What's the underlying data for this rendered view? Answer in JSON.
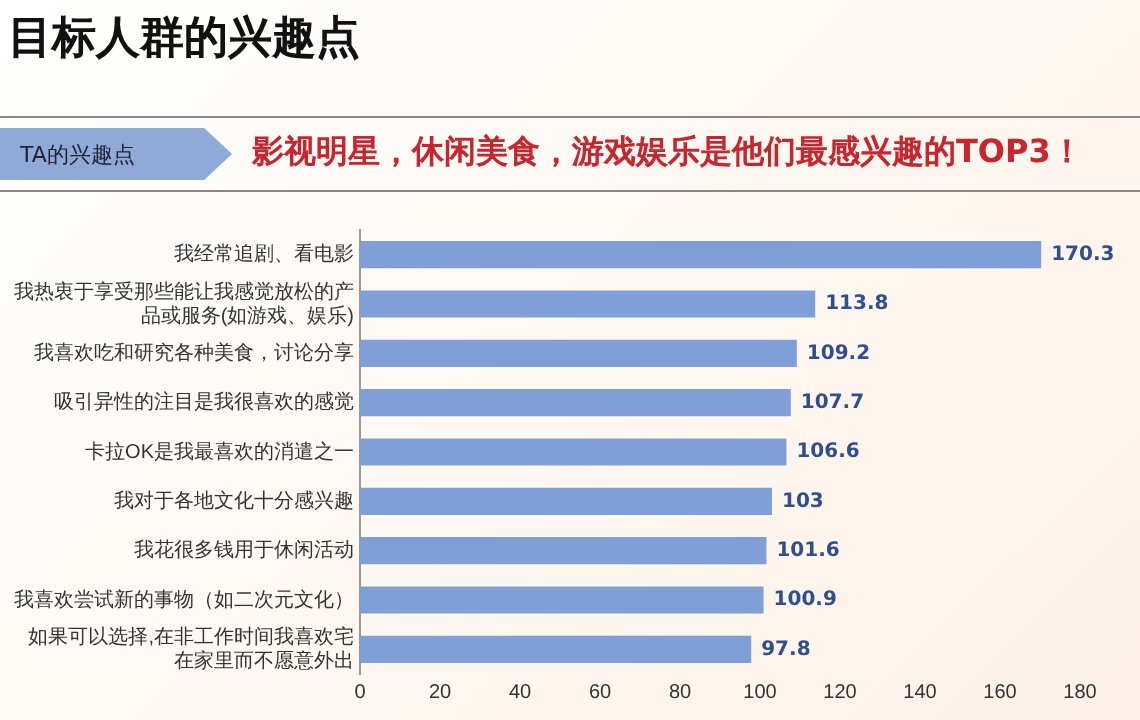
{
  "chart_data": {
    "type": "bar",
    "orientation": "horizontal",
    "title": "目标人群的兴趣点",
    "subtitle": "影视明星，休闲美食，游戏娱乐是他们最感兴趣的TOP3！",
    "annotations": [
      "TA的兴趣点"
    ],
    "categories": [
      "我经常追剧、看电影",
      "我热衷于享受那些能让我感觉放松的产品或服务(如游戏、娱乐)",
      "我喜欢吃和研究各种美食，讨论分享",
      "吸引异性的注目是我很喜欢的感觉",
      "卡拉OK是我最喜欢的消遣之一",
      "我对于各地文化十分感兴趣",
      "我花很多钱用于休闲活动",
      "我喜欢尝试新的事物（如二次元文化）",
      "如果可以选择,在非工作时间我喜欢宅在家里而不愿意外出"
    ],
    "values": [
      170.3,
      113.8,
      109.2,
      107.7,
      106.6,
      103,
      101.6,
      100.9,
      97.8
    ],
    "color": "#7f9fd6",
    "xlim": [
      0,
      180
    ],
    "xticks": [
      0,
      20,
      40,
      60,
      80,
      100,
      120,
      140,
      160,
      180
    ],
    "data_labels": true,
    "grid": false,
    "legend": false
  }
}
